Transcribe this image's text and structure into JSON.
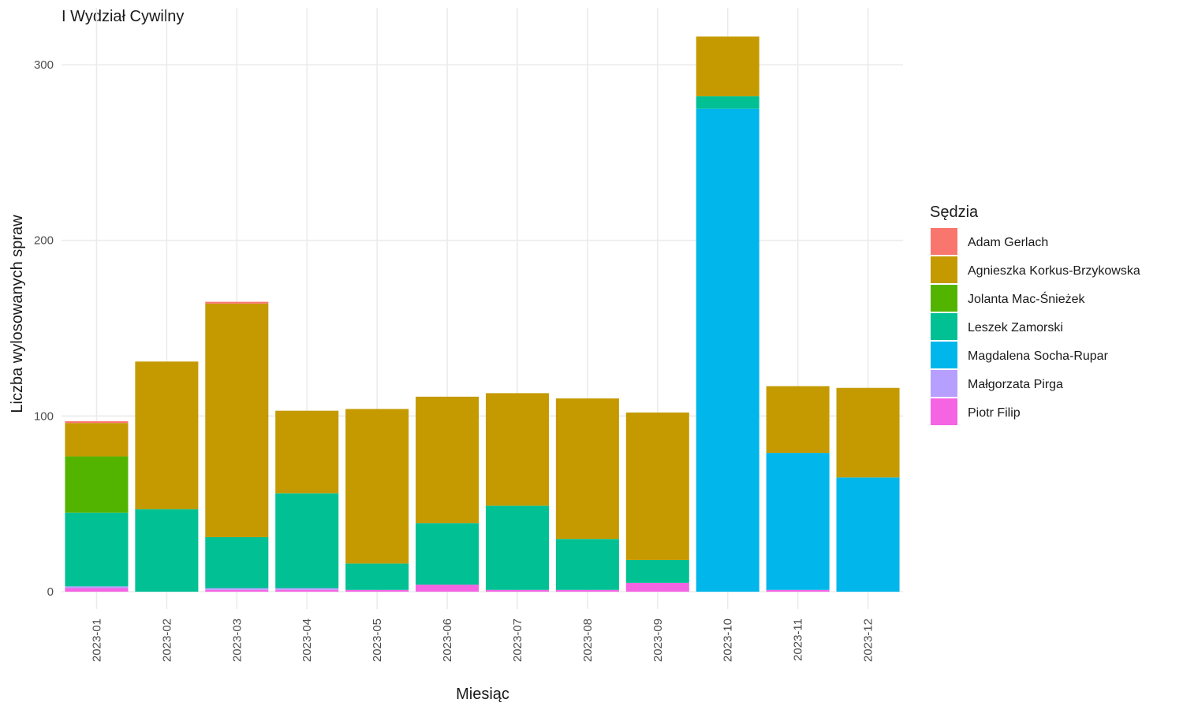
{
  "chart_data": {
    "type": "bar",
    "stacked": true,
    "title": "I Wydział Cywilny",
    "xlabel": "Miesiąc",
    "ylabel": "Liczba wylosowanych spraw",
    "ylim": [
      -10,
      318
    ],
    "yticks": [
      0,
      100,
      200,
      300
    ],
    "grid": true,
    "legend_position": "right",
    "legend_title": "Sędzia",
    "categories": [
      "2023-01",
      "2023-02",
      "2023-03",
      "2023-04",
      "2023-05",
      "2023-06",
      "2023-07",
      "2023-08",
      "2023-09",
      "2023-10",
      "2023-11",
      "2023-12"
    ],
    "series": [
      {
        "name": "Piotr Filip",
        "color": "#F564E3",
        "values": [
          2,
          0,
          1,
          1,
          1,
          4,
          1,
          1,
          5,
          0,
          1,
          0
        ]
      },
      {
        "name": "Małgorzata Pirga",
        "color": "#B79FFF",
        "values": [
          1,
          0,
          1,
          1,
          0,
          0,
          0,
          0,
          0,
          0,
          0,
          0
        ]
      },
      {
        "name": "Magdalena Socha-Rupar",
        "color": "#00B6EB",
        "values": [
          0,
          0,
          0,
          0,
          0,
          0,
          0,
          0,
          0,
          275,
          78,
          65
        ]
      },
      {
        "name": "Leszek Zamorski",
        "color": "#00C094",
        "values": [
          42,
          47,
          29,
          54,
          15,
          35,
          48,
          29,
          13,
          7,
          0,
          0
        ]
      },
      {
        "name": "Jolanta Mac-Śnieżek",
        "color": "#53B400",
        "values": [
          32,
          0,
          0,
          0,
          0,
          0,
          0,
          0,
          0,
          0,
          0,
          0
        ]
      },
      {
        "name": "Agnieszka Korkus-Brzykowska",
        "color": "#C49A00",
        "values": [
          19,
          84,
          133,
          47,
          88,
          72,
          64,
          80,
          84,
          34,
          38,
          51
        ]
      },
      {
        "name": "Adam Gerlach",
        "color": "#F8766D",
        "values": [
          1,
          0,
          1,
          0,
          0,
          0,
          0,
          0,
          0,
          0,
          0,
          0
        ]
      }
    ],
    "legend_order": [
      "Adam Gerlach",
      "Agnieszka Korkus-Brzykowska",
      "Jolanta Mac-Śnieżek",
      "Leszek Zamorski",
      "Magdalena Socha-Rupar",
      "Małgorzata Pirga",
      "Piotr Filip"
    ]
  }
}
